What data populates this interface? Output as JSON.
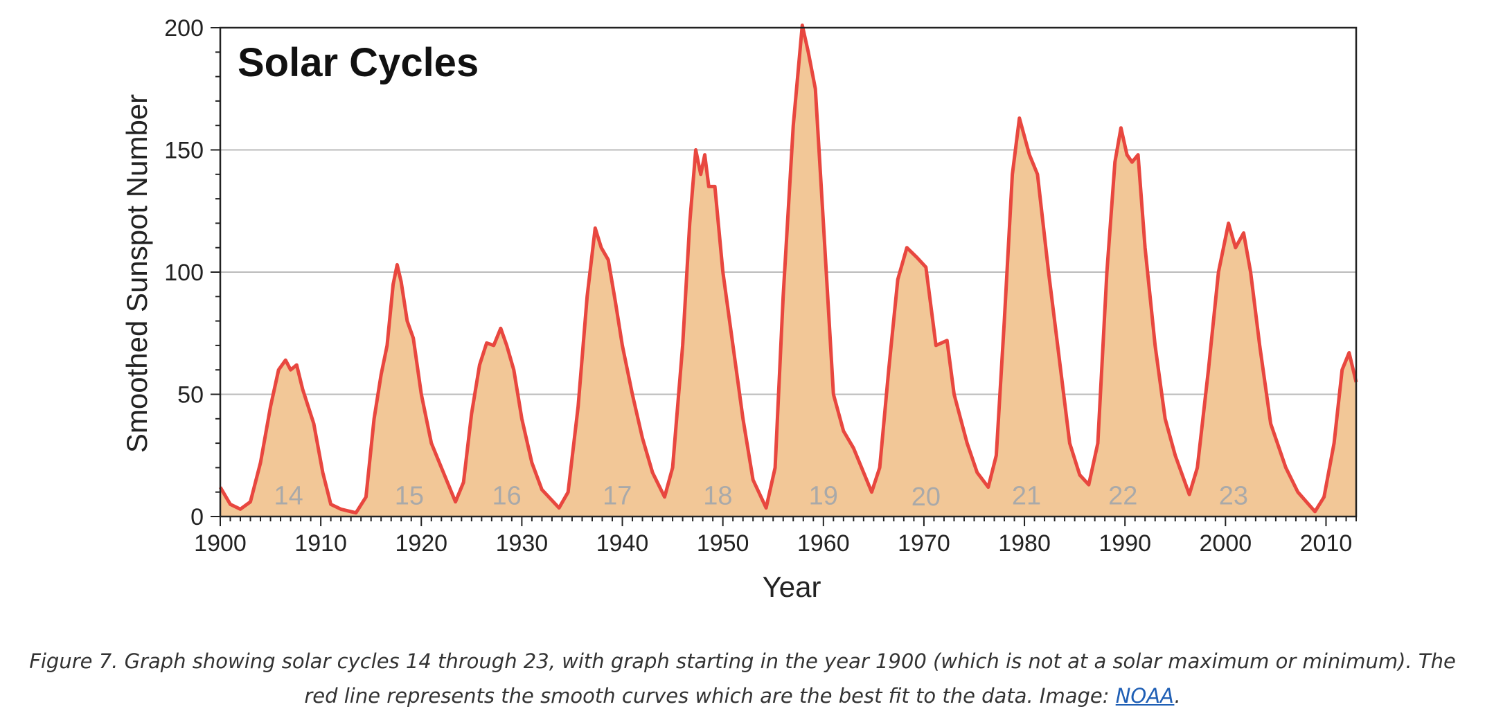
{
  "chart_data": {
    "type": "area",
    "title": "Solar Cycles",
    "xlabel": "Year",
    "ylabel": "Smoothed Sunspot Number",
    "xlim": [
      1900,
      2013
    ],
    "ylim": [
      0,
      200
    ],
    "x_ticks": [
      1900,
      1910,
      1920,
      1930,
      1940,
      1950,
      1960,
      1970,
      1980,
      1990,
      2000,
      2010
    ],
    "y_ticks": [
      0,
      50,
      100,
      150,
      200
    ],
    "grid": "horizontal",
    "colors": {
      "line": "#e8473f",
      "fill": "#f2c797",
      "grid": "#bbbbbb",
      "cycle_label": "#a9a9a9"
    },
    "series": [
      {
        "name": "Smoothed Sunspot Number",
        "points": [
          [
            1900,
            12
          ],
          [
            1901,
            5
          ],
          [
            1902,
            3
          ],
          [
            1903,
            6
          ],
          [
            1904,
            22
          ],
          [
            1905,
            45
          ],
          [
            1905.8,
            60
          ],
          [
            1906.5,
            64
          ],
          [
            1907,
            60
          ],
          [
            1907.6,
            62
          ],
          [
            1908.2,
            52
          ],
          [
            1909.3,
            38
          ],
          [
            1910.2,
            18
          ],
          [
            1911,
            5
          ],
          [
            1912,
            3
          ],
          [
            1913.5,
            1.5
          ],
          [
            1914.5,
            8
          ],
          [
            1915.3,
            40
          ],
          [
            1916,
            58
          ],
          [
            1916.6,
            70
          ],
          [
            1917.2,
            95
          ],
          [
            1917.6,
            103
          ],
          [
            1918,
            96
          ],
          [
            1918.6,
            80
          ],
          [
            1919.2,
            73
          ],
          [
            1920,
            50
          ],
          [
            1921,
            30
          ],
          [
            1922,
            20
          ],
          [
            1923.4,
            6
          ],
          [
            1924.2,
            14
          ],
          [
            1925,
            42
          ],
          [
            1925.8,
            62
          ],
          [
            1926.5,
            71
          ],
          [
            1927.2,
            70
          ],
          [
            1927.9,
            77
          ],
          [
            1928.5,
            70
          ],
          [
            1929.2,
            60
          ],
          [
            1930,
            40
          ],
          [
            1931,
            22
          ],
          [
            1932,
            11
          ],
          [
            1933.7,
            3.5
          ],
          [
            1934.6,
            10
          ],
          [
            1935.6,
            45
          ],
          [
            1936.5,
            90
          ],
          [
            1937.3,
            118
          ],
          [
            1937.9,
            110
          ],
          [
            1938.6,
            105
          ],
          [
            1939.3,
            88
          ],
          [
            1940,
            70
          ],
          [
            1941,
            50
          ],
          [
            1942,
            32
          ],
          [
            1943,
            18
          ],
          [
            1944.2,
            8
          ],
          [
            1945,
            20
          ],
          [
            1946,
            70
          ],
          [
            1946.7,
            120
          ],
          [
            1947.3,
            150
          ],
          [
            1947.8,
            140
          ],
          [
            1948.2,
            148
          ],
          [
            1948.6,
            135
          ],
          [
            1949.2,
            135
          ],
          [
            1950,
            100
          ],
          [
            1951,
            70
          ],
          [
            1952,
            40
          ],
          [
            1953,
            15
          ],
          [
            1954.3,
            3.5
          ],
          [
            1955.2,
            20
          ],
          [
            1956,
            90
          ],
          [
            1957,
            160
          ],
          [
            1957.9,
            201
          ],
          [
            1958.5,
            190
          ],
          [
            1959.2,
            175
          ],
          [
            1960,
            120
          ],
          [
            1961,
            50
          ],
          [
            1962,
            35
          ],
          [
            1963,
            28
          ],
          [
            1964.8,
            10
          ],
          [
            1965.6,
            20
          ],
          [
            1966.5,
            60
          ],
          [
            1967.4,
            97
          ],
          [
            1968.3,
            110
          ],
          [
            1969.3,
            106
          ],
          [
            1970.2,
            102
          ],
          [
            1971.2,
            70
          ],
          [
            1972.3,
            72
          ],
          [
            1973,
            50
          ],
          [
            1974.3,
            30
          ],
          [
            1975.3,
            18
          ],
          [
            1976.4,
            12
          ],
          [
            1977.2,
            25
          ],
          [
            1978,
            80
          ],
          [
            1978.8,
            140
          ],
          [
            1979.5,
            163
          ],
          [
            1980.5,
            148
          ],
          [
            1981.3,
            140
          ],
          [
            1982.4,
            100
          ],
          [
            1983.3,
            70
          ],
          [
            1984.5,
            30
          ],
          [
            1985.5,
            17
          ],
          [
            1986.4,
            13
          ],
          [
            1987.3,
            30
          ],
          [
            1988.2,
            100
          ],
          [
            1989,
            145
          ],
          [
            1989.6,
            159
          ],
          [
            1990.2,
            148
          ],
          [
            1990.7,
            145
          ],
          [
            1991.3,
            148
          ],
          [
            1992,
            110
          ],
          [
            1993,
            70
          ],
          [
            1994,
            40
          ],
          [
            1995,
            25
          ],
          [
            1996.4,
            9
          ],
          [
            1997.2,
            20
          ],
          [
            1998.3,
            60
          ],
          [
            1999.3,
            100
          ],
          [
            2000.3,
            120
          ],
          [
            2001,
            110
          ],
          [
            2001.8,
            116
          ],
          [
            2002.5,
            100
          ],
          [
            2003.4,
            70
          ],
          [
            2004.5,
            38
          ],
          [
            2006,
            20
          ],
          [
            2007.2,
            10
          ],
          [
            2008.9,
            2
          ],
          [
            2009.8,
            8
          ],
          [
            2010.8,
            30
          ],
          [
            2011.6,
            60
          ],
          [
            2012.3,
            67
          ],
          [
            2013,
            55
          ]
        ]
      }
    ],
    "annotations": [
      {
        "text": "14",
        "x": 1906.8,
        "y": 5
      },
      {
        "text": "15",
        "x": 1918.8,
        "y": 5
      },
      {
        "text": "16",
        "x": 1928.5,
        "y": 5
      },
      {
        "text": "17",
        "x": 1939.5,
        "y": 5
      },
      {
        "text": "18",
        "x": 1949.5,
        "y": 5
      },
      {
        "text": "19",
        "x": 1960,
        "y": 5
      },
      {
        "text": "20",
        "x": 1970.2,
        "y": 4.5
      },
      {
        "text": "21",
        "x": 1980.2,
        "y": 5
      },
      {
        "text": "22",
        "x": 1989.8,
        "y": 5
      },
      {
        "text": "23",
        "x": 2000.8,
        "y": 5
      }
    ]
  },
  "caption": {
    "text_before": "Figure 7. Graph showing solar cycles 14 through 23, with graph starting in the year 1900 (which is not at a solar maximum or minimum).  The red line represents the smooth curves which are the best fit to the data. Image: ",
    "link_text": "NOAA",
    "text_after": "."
  }
}
